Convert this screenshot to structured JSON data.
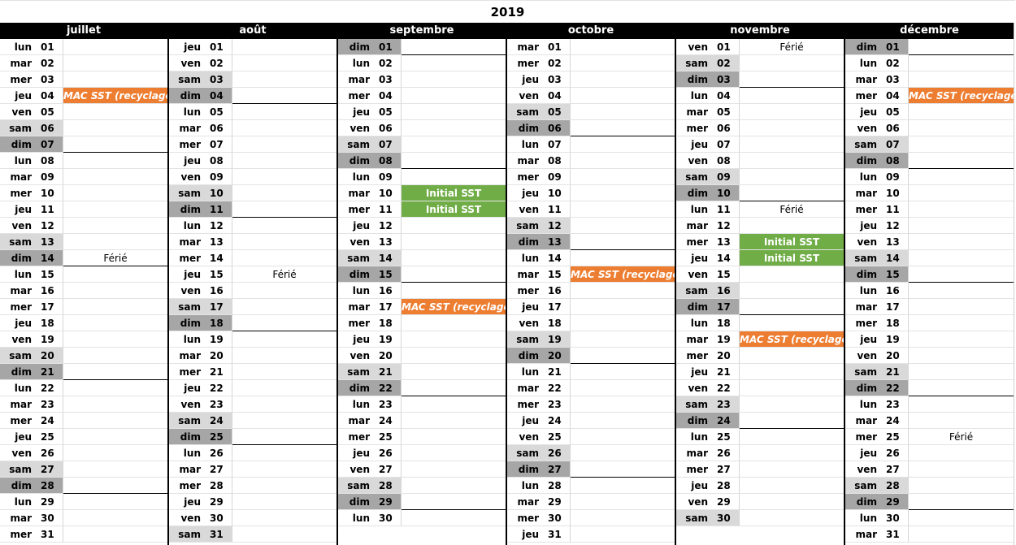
{
  "year": "2019",
  "notes": {
    "mac": "MAC SST (recyclage)",
    "initial": "Initial SST",
    "ferie": "Férié"
  },
  "colors": {
    "header_bg": "#000000",
    "saturday": "#d9d9d9",
    "sunday": "#a6a6a6",
    "mac_sst": "#ed7d31",
    "initial_sst": "#70ad47"
  },
  "months": [
    {
      "name": "juillet",
      "days": [
        {
          "dn": "lun",
          "num": "01"
        },
        {
          "dn": "mar",
          "num": "02"
        },
        {
          "dn": "mer",
          "num": "03"
        },
        {
          "dn": "jeu",
          "num": "04",
          "note": "mac"
        },
        {
          "dn": "ven",
          "num": "05"
        },
        {
          "dn": "sam",
          "num": "06"
        },
        {
          "dn": "dim",
          "num": "07"
        },
        {
          "dn": "lun",
          "num": "08"
        },
        {
          "dn": "mar",
          "num": "09"
        },
        {
          "dn": "mer",
          "num": "10"
        },
        {
          "dn": "jeu",
          "num": "11"
        },
        {
          "dn": "ven",
          "num": "12"
        },
        {
          "dn": "sam",
          "num": "13"
        },
        {
          "dn": "dim",
          "num": "14",
          "note": "ferie"
        },
        {
          "dn": "lun",
          "num": "15"
        },
        {
          "dn": "mar",
          "num": "16"
        },
        {
          "dn": "mer",
          "num": "17"
        },
        {
          "dn": "jeu",
          "num": "18"
        },
        {
          "dn": "ven",
          "num": "19"
        },
        {
          "dn": "sam",
          "num": "20"
        },
        {
          "dn": "dim",
          "num": "21"
        },
        {
          "dn": "lun",
          "num": "22"
        },
        {
          "dn": "mar",
          "num": "23"
        },
        {
          "dn": "mer",
          "num": "24"
        },
        {
          "dn": "jeu",
          "num": "25"
        },
        {
          "dn": "ven",
          "num": "26"
        },
        {
          "dn": "sam",
          "num": "27"
        },
        {
          "dn": "dim",
          "num": "28"
        },
        {
          "dn": "lun",
          "num": "29"
        },
        {
          "dn": "mar",
          "num": "30"
        },
        {
          "dn": "mer",
          "num": "31"
        }
      ]
    },
    {
      "name": "août",
      "days": [
        {
          "dn": "jeu",
          "num": "01"
        },
        {
          "dn": "ven",
          "num": "02"
        },
        {
          "dn": "sam",
          "num": "03"
        },
        {
          "dn": "dim",
          "num": "04"
        },
        {
          "dn": "lun",
          "num": "05"
        },
        {
          "dn": "mar",
          "num": "06"
        },
        {
          "dn": "mer",
          "num": "07"
        },
        {
          "dn": "jeu",
          "num": "08"
        },
        {
          "dn": "ven",
          "num": "09"
        },
        {
          "dn": "sam",
          "num": "10"
        },
        {
          "dn": "dim",
          "num": "11"
        },
        {
          "dn": "lun",
          "num": "12"
        },
        {
          "dn": "mar",
          "num": "13"
        },
        {
          "dn": "mer",
          "num": "14"
        },
        {
          "dn": "jeu",
          "num": "15",
          "note": "ferie"
        },
        {
          "dn": "ven",
          "num": "16"
        },
        {
          "dn": "sam",
          "num": "17"
        },
        {
          "dn": "dim",
          "num": "18"
        },
        {
          "dn": "lun",
          "num": "19"
        },
        {
          "dn": "mar",
          "num": "20"
        },
        {
          "dn": "mer",
          "num": "21"
        },
        {
          "dn": "jeu",
          "num": "22"
        },
        {
          "dn": "ven",
          "num": "23"
        },
        {
          "dn": "sam",
          "num": "24"
        },
        {
          "dn": "dim",
          "num": "25"
        },
        {
          "dn": "lun",
          "num": "26"
        },
        {
          "dn": "mar",
          "num": "27"
        },
        {
          "dn": "mer",
          "num": "28"
        },
        {
          "dn": "jeu",
          "num": "29"
        },
        {
          "dn": "ven",
          "num": "30"
        },
        {
          "dn": "sam",
          "num": "31"
        }
      ]
    },
    {
      "name": "septembre",
      "days": [
        {
          "dn": "dim",
          "num": "01"
        },
        {
          "dn": "lun",
          "num": "02"
        },
        {
          "dn": "mar",
          "num": "03"
        },
        {
          "dn": "mer",
          "num": "04"
        },
        {
          "dn": "jeu",
          "num": "05"
        },
        {
          "dn": "ven",
          "num": "06"
        },
        {
          "dn": "sam",
          "num": "07"
        },
        {
          "dn": "dim",
          "num": "08"
        },
        {
          "dn": "lun",
          "num": "09"
        },
        {
          "dn": "mar",
          "num": "10",
          "note": "initial"
        },
        {
          "dn": "mer",
          "num": "11",
          "note": "initial"
        },
        {
          "dn": "jeu",
          "num": "12"
        },
        {
          "dn": "ven",
          "num": "13"
        },
        {
          "dn": "sam",
          "num": "14"
        },
        {
          "dn": "dim",
          "num": "15"
        },
        {
          "dn": "lun",
          "num": "16"
        },
        {
          "dn": "mar",
          "num": "17",
          "note": "mac"
        },
        {
          "dn": "mer",
          "num": "18"
        },
        {
          "dn": "jeu",
          "num": "19"
        },
        {
          "dn": "ven",
          "num": "20"
        },
        {
          "dn": "sam",
          "num": "21"
        },
        {
          "dn": "dim",
          "num": "22"
        },
        {
          "dn": "lun",
          "num": "23"
        },
        {
          "dn": "mar",
          "num": "24"
        },
        {
          "dn": "mer",
          "num": "25"
        },
        {
          "dn": "jeu",
          "num": "26"
        },
        {
          "dn": "ven",
          "num": "27"
        },
        {
          "dn": "sam",
          "num": "28"
        },
        {
          "dn": "dim",
          "num": "29"
        },
        {
          "dn": "lun",
          "num": "30"
        }
      ]
    },
    {
      "name": "octobre",
      "days": [
        {
          "dn": "mar",
          "num": "01"
        },
        {
          "dn": "mer",
          "num": "02"
        },
        {
          "dn": "jeu",
          "num": "03"
        },
        {
          "dn": "ven",
          "num": "04"
        },
        {
          "dn": "sam",
          "num": "05"
        },
        {
          "dn": "dim",
          "num": "06"
        },
        {
          "dn": "lun",
          "num": "07"
        },
        {
          "dn": "mar",
          "num": "08"
        },
        {
          "dn": "mer",
          "num": "09"
        },
        {
          "dn": "jeu",
          "num": "10"
        },
        {
          "dn": "ven",
          "num": "11"
        },
        {
          "dn": "sam",
          "num": "12"
        },
        {
          "dn": "dim",
          "num": "13"
        },
        {
          "dn": "lun",
          "num": "14"
        },
        {
          "dn": "mar",
          "num": "15",
          "note": "mac"
        },
        {
          "dn": "mer",
          "num": "16"
        },
        {
          "dn": "jeu",
          "num": "17"
        },
        {
          "dn": "ven",
          "num": "18"
        },
        {
          "dn": "sam",
          "num": "19"
        },
        {
          "dn": "dim",
          "num": "20"
        },
        {
          "dn": "lun",
          "num": "21"
        },
        {
          "dn": "mar",
          "num": "22"
        },
        {
          "dn": "mer",
          "num": "23"
        },
        {
          "dn": "jeu",
          "num": "24"
        },
        {
          "dn": "ven",
          "num": "25"
        },
        {
          "dn": "sam",
          "num": "26"
        },
        {
          "dn": "dim",
          "num": "27"
        },
        {
          "dn": "lun",
          "num": "28"
        },
        {
          "dn": "mar",
          "num": "29"
        },
        {
          "dn": "mer",
          "num": "30"
        },
        {
          "dn": "jeu",
          "num": "31"
        }
      ]
    },
    {
      "name": "novembre",
      "days": [
        {
          "dn": "ven",
          "num": "01",
          "note": "ferie"
        },
        {
          "dn": "sam",
          "num": "02"
        },
        {
          "dn": "dim",
          "num": "03"
        },
        {
          "dn": "lun",
          "num": "04"
        },
        {
          "dn": "mar",
          "num": "05"
        },
        {
          "dn": "mer",
          "num": "06"
        },
        {
          "dn": "jeu",
          "num": "07"
        },
        {
          "dn": "ven",
          "num": "08"
        },
        {
          "dn": "sam",
          "num": "09"
        },
        {
          "dn": "dim",
          "num": "10"
        },
        {
          "dn": "lun",
          "num": "11",
          "note": "ferie"
        },
        {
          "dn": "mar",
          "num": "12"
        },
        {
          "dn": "mer",
          "num": "13",
          "note": "initial"
        },
        {
          "dn": "jeu",
          "num": "14",
          "note": "initial"
        },
        {
          "dn": "ven",
          "num": "15"
        },
        {
          "dn": "sam",
          "num": "16"
        },
        {
          "dn": "dim",
          "num": "17"
        },
        {
          "dn": "lun",
          "num": "18"
        },
        {
          "dn": "mar",
          "num": "19",
          "note": "mac"
        },
        {
          "dn": "mer",
          "num": "20"
        },
        {
          "dn": "jeu",
          "num": "21"
        },
        {
          "dn": "ven",
          "num": "22"
        },
        {
          "dn": "sam",
          "num": "23"
        },
        {
          "dn": "dim",
          "num": "24"
        },
        {
          "dn": "lun",
          "num": "25"
        },
        {
          "dn": "mar",
          "num": "26"
        },
        {
          "dn": "mer",
          "num": "27"
        },
        {
          "dn": "jeu",
          "num": "28"
        },
        {
          "dn": "ven",
          "num": "29"
        },
        {
          "dn": "sam",
          "num": "30"
        }
      ]
    },
    {
      "name": "décembre",
      "days": [
        {
          "dn": "dim",
          "num": "01"
        },
        {
          "dn": "lun",
          "num": "02"
        },
        {
          "dn": "mar",
          "num": "03"
        },
        {
          "dn": "mer",
          "num": "04",
          "note": "mac"
        },
        {
          "dn": "jeu",
          "num": "05"
        },
        {
          "dn": "ven",
          "num": "06"
        },
        {
          "dn": "sam",
          "num": "07"
        },
        {
          "dn": "dim",
          "num": "08"
        },
        {
          "dn": "lun",
          "num": "09"
        },
        {
          "dn": "mar",
          "num": "10"
        },
        {
          "dn": "mer",
          "num": "11"
        },
        {
          "dn": "jeu",
          "num": "12"
        },
        {
          "dn": "ven",
          "num": "13"
        },
        {
          "dn": "sam",
          "num": "14"
        },
        {
          "dn": "dim",
          "num": "15"
        },
        {
          "dn": "lun",
          "num": "16"
        },
        {
          "dn": "mar",
          "num": "17"
        },
        {
          "dn": "mer",
          "num": "18"
        },
        {
          "dn": "jeu",
          "num": "19"
        },
        {
          "dn": "ven",
          "num": "20"
        },
        {
          "dn": "sam",
          "num": "21"
        },
        {
          "dn": "dim",
          "num": "22"
        },
        {
          "dn": "lun",
          "num": "23"
        },
        {
          "dn": "mar",
          "num": "24"
        },
        {
          "dn": "mer",
          "num": "25",
          "note": "ferie"
        },
        {
          "dn": "jeu",
          "num": "26"
        },
        {
          "dn": "ven",
          "num": "27"
        },
        {
          "dn": "sam",
          "num": "28"
        },
        {
          "dn": "dim",
          "num": "29"
        },
        {
          "dn": "lun",
          "num": "30"
        },
        {
          "dn": "mar",
          "num": "31"
        }
      ]
    }
  ]
}
